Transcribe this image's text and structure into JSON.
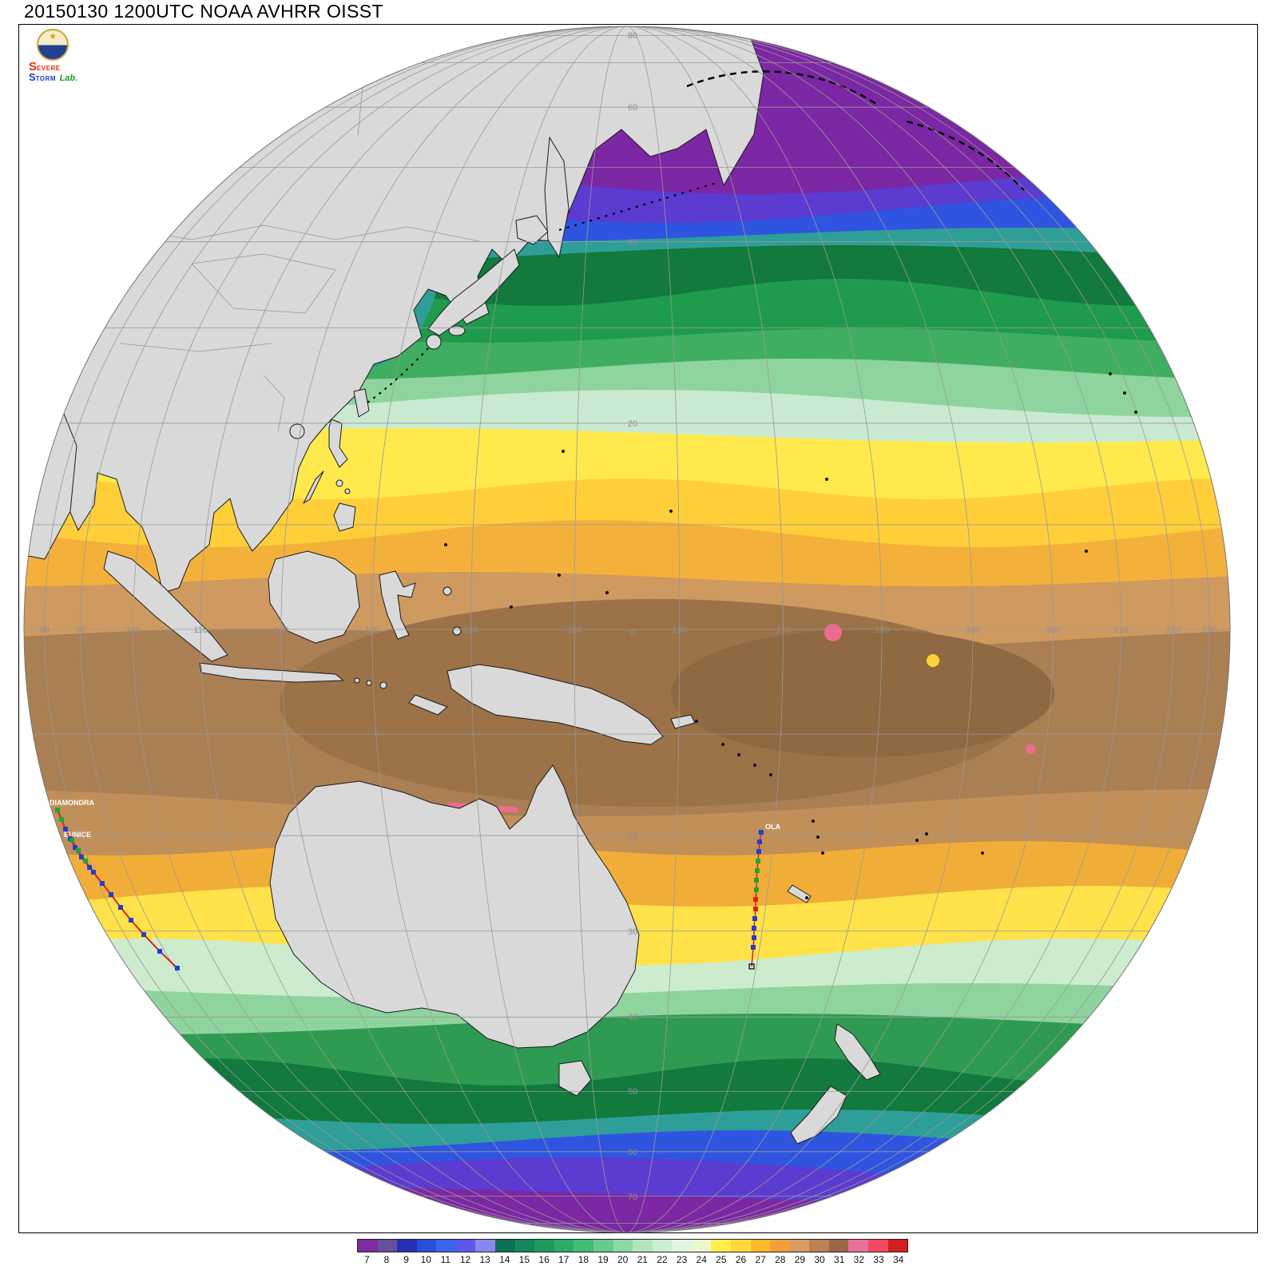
{
  "title": "20150130 1200UTC NOAA AVHRR OISST",
  "logo": {
    "severe_initial": "S",
    "severe_rest": "EVERE",
    "storm_initial": "S",
    "storm_rest": "TORM",
    "lab_text": "Lab."
  },
  "map": {
    "lat_labels": [
      "80",
      "60",
      "40",
      "20",
      "0",
      "20",
      "30",
      "40",
      "50",
      "60",
      "70"
    ],
    "lon_labels": [
      "80",
      "90",
      "100",
      "110",
      "120",
      "130",
      "140",
      "150",
      "160",
      "170",
      "180",
      "190",
      "200",
      "210",
      "220",
      "230"
    ],
    "tracks": [
      {
        "name": "DIAMONDRA"
      },
      {
        "name": "EUNICE"
      },
      {
        "name": "OLA"
      }
    ]
  },
  "colorbar": {
    "labels": [
      "7",
      "8",
      "9",
      "10",
      "11",
      "12",
      "13",
      "14",
      "15",
      "16",
      "17",
      "18",
      "19",
      "20",
      "21",
      "22",
      "23",
      "24",
      "25",
      "26",
      "27",
      "28",
      "29",
      "30",
      "31",
      "32",
      "33",
      "34"
    ],
    "colors": [
      "#7d2ca0",
      "#64519e",
      "#2430b4",
      "#2b4ed8",
      "#3a66ec",
      "#5b5ae8",
      "#8b86ee",
      "#0e7055",
      "#15865a",
      "#1d9b5e",
      "#2aae66",
      "#41bd76",
      "#66cb8c",
      "#8dd9a4",
      "#b2e5bd",
      "#cceed2",
      "#e0f4df",
      "#eef7cb",
      "#ffee4e",
      "#ffd93a",
      "#fdba2c",
      "#f29d3e",
      "#d99a62",
      "#bb8254",
      "#99684a",
      "#e8709a",
      "#f04a60",
      "#d21f1f"
    ]
  }
}
